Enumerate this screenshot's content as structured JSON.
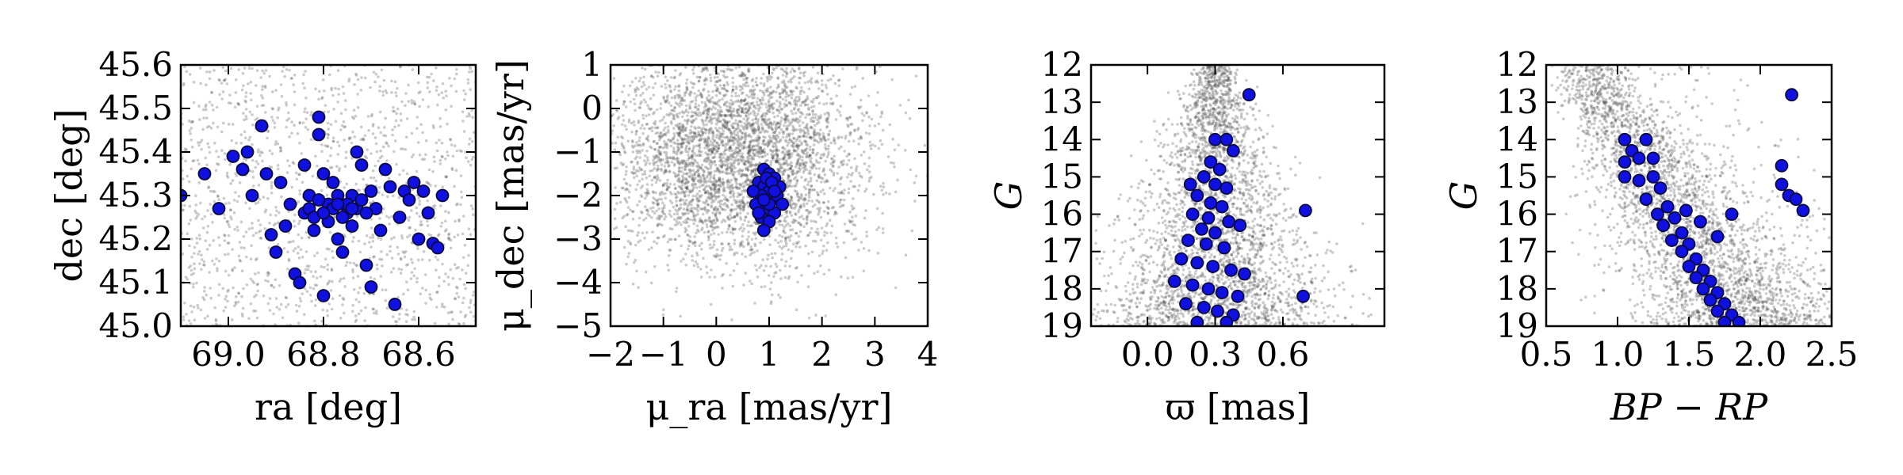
{
  "colors": {
    "member_fill": "#1010e0",
    "member_edge": "#0a0a40",
    "field_stars": "#444444"
  },
  "chart_data": [
    {
      "id": "sky",
      "type": "scatter",
      "xlabel": "ra [deg]",
      "ylabel": "dec [deg]",
      "xlim": [
        69.1,
        68.48
      ],
      "ylim": [
        45.0,
        45.6
      ],
      "x_inverted": true,
      "xticks": [
        {
          "value": 69.0,
          "label": "69.0"
        },
        {
          "value": 68.8,
          "label": "68.8"
        },
        {
          "value": 68.6,
          "label": "68.6"
        }
      ],
      "yticks": [
        {
          "value": 45.0,
          "label": "45.0"
        },
        {
          "value": 45.1,
          "label": "45.1"
        },
        {
          "value": 45.2,
          "label": "45.2"
        },
        {
          "value": 45.3,
          "label": "45.3"
        },
        {
          "value": 45.4,
          "label": "45.4"
        },
        {
          "value": 45.5,
          "label": "45.5"
        },
        {
          "value": 45.6,
          "label": "45.6"
        }
      ],
      "background": {
        "shape": "uniform",
        "count": 1400
      },
      "members": [
        [
          69.1,
          45.3
        ],
        [
          69.05,
          45.35
        ],
        [
          69.02,
          45.27
        ],
        [
          68.99,
          45.39
        ],
        [
          68.97,
          45.36
        ],
        [
          68.96,
          45.4
        ],
        [
          68.95,
          45.3
        ],
        [
          68.93,
          45.46
        ],
        [
          68.92,
          45.35
        ],
        [
          68.91,
          45.21
        ],
        [
          68.9,
          45.17
        ],
        [
          68.89,
          45.33
        ],
        [
          68.88,
          45.23
        ],
        [
          68.87,
          45.28
        ],
        [
          68.86,
          45.12
        ],
        [
          68.85,
          45.1
        ],
        [
          68.84,
          45.37
        ],
        [
          68.84,
          45.26
        ],
        [
          68.83,
          45.3
        ],
        [
          68.82,
          45.22
        ],
        [
          68.81,
          45.44
        ],
        [
          68.81,
          45.48
        ],
        [
          68.8,
          45.35
        ],
        [
          68.8,
          45.07
        ],
        [
          68.79,
          45.28
        ],
        [
          68.78,
          45.33
        ],
        [
          68.77,
          45.2
        ],
        [
          68.76,
          45.17
        ],
        [
          68.75,
          45.26
        ],
        [
          68.74,
          45.3
        ],
        [
          68.73,
          45.4
        ],
        [
          68.72,
          45.37
        ],
        [
          68.71,
          45.14
        ],
        [
          68.7,
          45.09
        ],
        [
          68.69,
          45.27
        ],
        [
          68.68,
          45.22
        ],
        [
          68.67,
          45.36
        ],
        [
          68.66,
          45.32
        ],
        [
          68.65,
          45.05
        ],
        [
          68.64,
          45.25
        ],
        [
          68.63,
          45.31
        ],
        [
          68.62,
          45.29
        ],
        [
          68.61,
          45.33
        ],
        [
          68.6,
          45.2
        ],
        [
          68.59,
          45.31
        ],
        [
          68.58,
          45.26
        ],
        [
          68.57,
          45.19
        ],
        [
          68.56,
          45.18
        ],
        [
          68.55,
          45.3
        ],
        [
          68.83,
          45.27
        ],
        [
          68.82,
          45.25
        ],
        [
          68.81,
          45.29
        ],
        [
          68.79,
          45.24
        ],
        [
          68.78,
          45.27
        ],
        [
          68.77,
          45.3
        ],
        [
          68.76,
          45.25
        ],
        [
          68.75,
          45.28
        ],
        [
          68.74,
          45.23
        ],
        [
          68.73,
          45.27
        ],
        [
          68.72,
          45.29
        ],
        [
          68.71,
          45.26
        ],
        [
          68.7,
          45.31
        ],
        [
          68.8,
          45.26
        ],
        [
          68.77,
          45.28
        ],
        [
          68.74,
          45.27
        ]
      ]
    },
    {
      "id": "pm",
      "type": "scatter",
      "xlabel": "μ_ra [mas/yr]",
      "ylabel": "μ_dec [mas/yr]",
      "xlim": [
        -2,
        4
      ],
      "ylim": [
        -5,
        1
      ],
      "xticks": [
        {
          "value": -2,
          "label": "−2"
        },
        {
          "value": -1,
          "label": "−1"
        },
        {
          "value": 0,
          "label": "0"
        },
        {
          "value": 1,
          "label": "1"
        },
        {
          "value": 2,
          "label": "2"
        },
        {
          "value": 3,
          "label": "3"
        },
        {
          "value": 4,
          "label": "4"
        }
      ],
      "yticks": [
        {
          "value": 1,
          "label": "1"
        },
        {
          "value": 0,
          "label": "0"
        },
        {
          "value": -1,
          "label": "−1"
        },
        {
          "value": -2,
          "label": "−2"
        },
        {
          "value": -3,
          "label": "−3"
        },
        {
          "value": -4,
          "label": "−4"
        },
        {
          "value": -5,
          "label": "−5"
        }
      ],
      "background": {
        "shape": "gaussian",
        "count": 4200,
        "cx": 0.4,
        "cy": -1.1,
        "sx": 1.2,
        "sy": 1.25
      },
      "members": [
        [
          0.9,
          -1.4
        ],
        [
          1.0,
          -1.5
        ],
        [
          1.1,
          -1.6
        ],
        [
          0.8,
          -1.7
        ],
        [
          0.9,
          -1.8
        ],
        [
          1.0,
          -1.9
        ],
        [
          1.2,
          -1.8
        ],
        [
          0.85,
          -2.0
        ],
        [
          1.05,
          -2.1
        ],
        [
          1.15,
          -2.0
        ],
        [
          0.75,
          -2.2
        ],
        [
          0.95,
          -2.3
        ],
        [
          1.1,
          -2.4
        ],
        [
          0.85,
          -2.5
        ],
        [
          1.0,
          -2.6
        ],
        [
          0.9,
          -2.8
        ],
        [
          0.7,
          -1.9
        ],
        [
          1.25,
          -2.2
        ],
        [
          0.95,
          -1.6
        ],
        [
          1.05,
          -1.7
        ],
        [
          0.8,
          -2.4
        ],
        [
          1.0,
          -2.2
        ],
        [
          1.1,
          -1.9
        ],
        [
          0.9,
          -2.1
        ]
      ]
    },
    {
      "id": "parallax",
      "type": "scatter",
      "xlabel": "ϖ [mas]",
      "ylabel": "G",
      "xlim": [
        -0.25,
        1.05
      ],
      "ylim": [
        19,
        12
      ],
      "y_inverted": true,
      "xticks": [
        {
          "value": 0.0,
          "label": "0.0"
        },
        {
          "value": 0.3,
          "label": "0.3"
        },
        {
          "value": 0.6,
          "label": "0.6"
        }
      ],
      "yticks": [
        {
          "value": 12,
          "label": "12"
        },
        {
          "value": 13,
          "label": "13"
        },
        {
          "value": 14,
          "label": "14"
        },
        {
          "value": 15,
          "label": "15"
        },
        {
          "value": 16,
          "label": "16"
        },
        {
          "value": 17,
          "label": "17"
        },
        {
          "value": 18,
          "label": "18"
        },
        {
          "value": 19,
          "label": "19"
        }
      ],
      "background": {
        "shape": "funnel",
        "count": 4500
      },
      "members": [
        [
          0.45,
          12.8
        ],
        [
          0.3,
          14.0
        ],
        [
          0.35,
          14.0
        ],
        [
          0.38,
          14.3
        ],
        [
          0.28,
          14.6
        ],
        [
          0.32,
          14.8
        ],
        [
          0.25,
          15.0
        ],
        [
          0.3,
          15.2
        ],
        [
          0.35,
          15.3
        ],
        [
          0.22,
          15.5
        ],
        [
          0.28,
          15.7
        ],
        [
          0.33,
          15.8
        ],
        [
          0.2,
          16.0
        ],
        [
          0.27,
          16.1
        ],
        [
          0.36,
          16.2
        ],
        [
          0.24,
          16.4
        ],
        [
          0.3,
          16.5
        ],
        [
          0.18,
          16.7
        ],
        [
          0.26,
          16.8
        ],
        [
          0.34,
          16.9
        ],
        [
          0.15,
          17.2
        ],
        [
          0.22,
          17.3
        ],
        [
          0.29,
          17.4
        ],
        [
          0.37,
          17.5
        ],
        [
          0.12,
          17.8
        ],
        [
          0.2,
          17.9
        ],
        [
          0.27,
          18.0
        ],
        [
          0.33,
          18.1
        ],
        [
          0.4,
          18.2
        ],
        [
          0.17,
          18.4
        ],
        [
          0.25,
          18.5
        ],
        [
          0.31,
          18.6
        ],
        [
          0.38,
          18.7
        ],
        [
          0.22,
          18.9
        ],
        [
          0.35,
          18.9
        ],
        [
          0.7,
          15.9
        ],
        [
          0.69,
          18.2
        ],
        [
          0.41,
          16.3
        ],
        [
          0.19,
          15.2
        ],
        [
          0.43,
          17.6
        ]
      ]
    },
    {
      "id": "cmd",
      "type": "scatter",
      "xlabel": "BP − RP",
      "ylabel": "G",
      "xlim": [
        0.5,
        2.5
      ],
      "ylim": [
        19,
        12
      ],
      "y_inverted": true,
      "xticks": [
        {
          "value": 0.5,
          "label": "0.5"
        },
        {
          "value": 1.0,
          "label": "1.0"
        },
        {
          "value": 1.5,
          "label": "1.5"
        },
        {
          "value": 2.0,
          "label": "2.0"
        },
        {
          "value": 2.5,
          "label": "2.5"
        }
      ],
      "yticks": [
        {
          "value": 12,
          "label": "12"
        },
        {
          "value": 13,
          "label": "13"
        },
        {
          "value": 14,
          "label": "14"
        },
        {
          "value": 15,
          "label": "15"
        },
        {
          "value": 16,
          "label": "16"
        },
        {
          "value": 17,
          "label": "17"
        },
        {
          "value": 18,
          "label": "18"
        },
        {
          "value": 19,
          "label": "19"
        }
      ],
      "background": {
        "shape": "band",
        "count": 4200
      },
      "members": [
        [
          1.05,
          14.0
        ],
        [
          1.2,
          14.0
        ],
        [
          1.1,
          14.3
        ],
        [
          1.05,
          14.6
        ],
        [
          1.15,
          14.5
        ],
        [
          1.25,
          14.5
        ],
        [
          1.05,
          15.0
        ],
        [
          1.15,
          15.1
        ],
        [
          1.25,
          15.0
        ],
        [
          1.3,
          15.3
        ],
        [
          1.2,
          15.6
        ],
        [
          1.35,
          15.8
        ],
        [
          1.28,
          16.0
        ],
        [
          1.4,
          16.1
        ],
        [
          1.32,
          16.3
        ],
        [
          1.45,
          16.5
        ],
        [
          1.38,
          16.7
        ],
        [
          1.5,
          16.8
        ],
        [
          1.45,
          17.0
        ],
        [
          1.55,
          17.2
        ],
        [
          1.5,
          17.4
        ],
        [
          1.6,
          17.5
        ],
        [
          1.55,
          17.7
        ],
        [
          1.65,
          17.8
        ],
        [
          1.6,
          18.0
        ],
        [
          1.7,
          18.1
        ],
        [
          1.65,
          18.3
        ],
        [
          1.75,
          18.4
        ],
        [
          1.7,
          18.6
        ],
        [
          1.8,
          18.7
        ],
        [
          1.75,
          18.9
        ],
        [
          1.85,
          18.9
        ],
        [
          2.22,
          12.8
        ],
        [
          2.15,
          14.7
        ],
        [
          2.15,
          15.2
        ],
        [
          2.2,
          15.5
        ],
        [
          2.25,
          15.6
        ],
        [
          2.3,
          15.9
        ],
        [
          1.8,
          16.0
        ],
        [
          1.7,
          16.6
        ],
        [
          1.58,
          16.2
        ],
        [
          1.48,
          15.9
        ]
      ]
    }
  ]
}
